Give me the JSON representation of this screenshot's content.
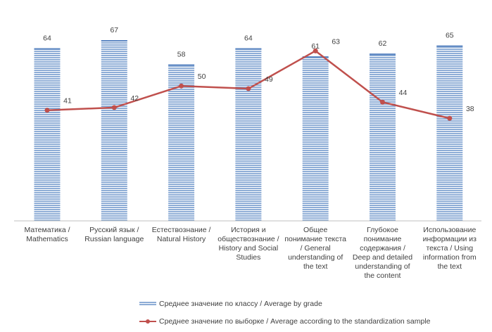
{
  "chart_data": {
    "type": "bar+line",
    "categories": [
      "Математика / Mathematics",
      "Русский язык / Russian language",
      "Естествознание / Natural History",
      "История и обществознание / History and Social Studies",
      "Общее понимание текста / General understanding of the text",
      "Глубокое понимание содержания / Deep and detailed understanding of the content",
      "Использование информации из текста / Using information from the text"
    ],
    "category_lines": [
      [
        "Математика /",
        "Mathematics"
      ],
      [
        "Русский язык /",
        "Russian language"
      ],
      [
        "Естествознание /",
        "Natural History"
      ],
      [
        "История и",
        "обществознание /",
        "History and Social",
        "Studies"
      ],
      [
        "Общее",
        "понимание текста",
        "/ General",
        "understanding of",
        "the text"
      ],
      [
        "Глубокое",
        "понимание",
        "содержания /",
        "Deep and detailed",
        "understanding of",
        "the content"
      ],
      [
        "Использование",
        "информации из",
        "текста / Using",
        "information from",
        "the text"
      ]
    ],
    "series": [
      {
        "name": "Среднее значение по классу / Average by grade",
        "kind": "bar",
        "values": [
          64,
          67,
          58,
          64,
          61,
          62,
          65
        ],
        "value_labels": [
          "64",
          "67",
          "58",
          "64",
          "61",
          "62",
          "65"
        ]
      },
      {
        "name": "Среднее значение по выборке / Average according to the standardization sample",
        "kind": "line",
        "values": [
          41,
          42,
          50,
          49,
          63,
          44,
          38
        ],
        "value_labels": [
          "41",
          "42",
          "50",
          "49",
          "63",
          "44",
          "38"
        ]
      }
    ],
    "ylim": [
      0,
      70
    ],
    "grid": false,
    "legend": "bottom"
  },
  "colors": {
    "bar": "#8EADD6",
    "bar_stripe": "#FFFFFF",
    "bar_top": "#5B86C2",
    "line": "#C0504D",
    "axis": "#BFBFBF",
    "text": "#404040"
  }
}
